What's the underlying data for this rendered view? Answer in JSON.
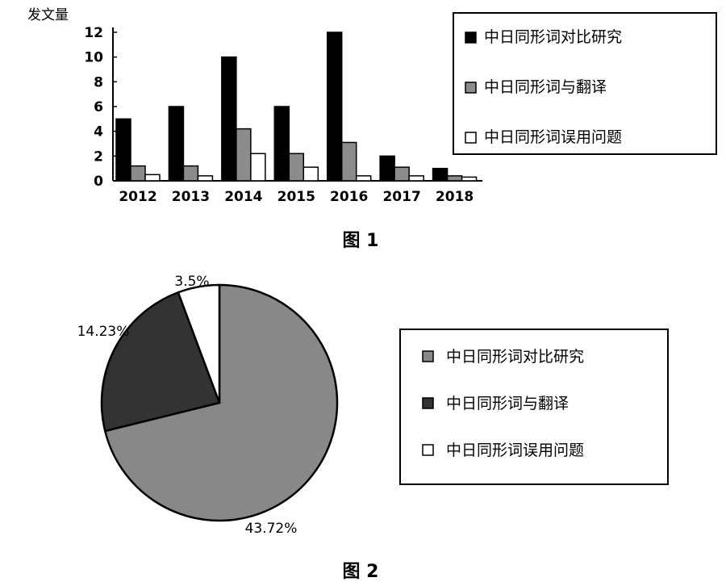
{
  "chart_data": [
    {
      "type": "bar",
      "ylabel": "发文量",
      "categories": [
        "2012",
        "2013",
        "2014",
        "2015",
        "2016",
        "2017",
        "2018"
      ],
      "ylim": [
        0,
        12
      ],
      "yticks": [
        "0",
        "2",
        "4",
        "6",
        "8",
        "10",
        "12"
      ],
      "legend_position": "top-right",
      "series": [
        {
          "name": "中日同形词对比研究",
          "color": "#000000",
          "values": [
            5,
            6,
            10,
            6,
            12,
            2,
            1
          ]
        },
        {
          "name": "中日同形词与翻译",
          "color": "#8c8c8c",
          "values": [
            1.2,
            1.2,
            4.2,
            2.2,
            3.1,
            1.1,
            0.4
          ]
        },
        {
          "name": "中日同形词误用问题",
          "color": "#ffffff",
          "values": [
            0.5,
            0.4,
            2.2,
            1.1,
            0.4,
            0.4,
            0.3
          ]
        }
      ],
      "caption": "图 1"
    },
    {
      "type": "pie",
      "legend_position": "right",
      "slices": [
        {
          "name": "中日同形词对比研究",
          "color": "#888888",
          "value": 43.72,
          "label": "43.72%"
        },
        {
          "name": "中日同形词与翻译",
          "color": "#333333",
          "value": 14.23,
          "label": "14.23%"
        },
        {
          "name": "中日同形词误用问题",
          "color": "#ffffff",
          "value": 3.5,
          "label": "3.5%"
        }
      ],
      "caption": "图 2"
    }
  ]
}
